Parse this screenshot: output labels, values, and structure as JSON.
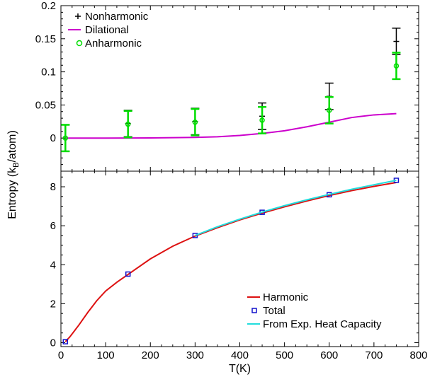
{
  "chart_data": [
    {
      "type": "scatter",
      "panel": "top",
      "ylim": [
        -0.05,
        0.2
      ],
      "xlim": [
        0,
        800
      ],
      "yticks": [
        0,
        0.05,
        0.1,
        0.15,
        0.2
      ],
      "ytick_labels": [
        "0",
        "0.05",
        "0.1",
        "0.15",
        "0.2"
      ],
      "grid": false,
      "legend_position": "top-left",
      "series": [
        {
          "name": "Nonharmonic",
          "kind": "errorbar",
          "color": "#000000",
          "x": [
            10,
            150,
            300,
            450,
            600,
            750
          ],
          "y": [
            0.0,
            0.022,
            0.025,
            0.033,
            0.063,
            0.146
          ],
          "err": [
            0.02,
            0.02,
            0.02,
            0.02,
            0.02,
            0.02
          ]
        },
        {
          "name": "Dilational",
          "kind": "line",
          "color": "#cc00cc",
          "x": [
            10,
            100,
            200,
            300,
            350,
            400,
            450,
            500,
            550,
            600,
            650,
            700,
            750
          ],
          "y": [
            0.0,
            0.0,
            0.0002,
            0.001,
            0.002,
            0.004,
            0.007,
            0.011,
            0.017,
            0.024,
            0.031,
            0.035,
            0.037
          ]
        },
        {
          "name": "Anharmonic",
          "kind": "errorbar",
          "color": "#00dd00",
          "x": [
            10,
            150,
            300,
            450,
            600,
            750
          ],
          "y": [
            0.0,
            0.021,
            0.024,
            0.027,
            0.042,
            0.109
          ],
          "err": [
            0.02,
            0.02,
            0.02,
            0.02,
            0.02,
            0.02
          ]
        }
      ]
    },
    {
      "type": "line",
      "panel": "bottom",
      "ylim": [
        -0.2,
        8.8
      ],
      "xlim": [
        0,
        800
      ],
      "xticks": [
        0,
        100,
        200,
        300,
        400,
        500,
        600,
        700,
        800
      ],
      "yticks": [
        0,
        2,
        4,
        6,
        8
      ],
      "ytick_labels": [
        "0",
        "2",
        "4",
        "6",
        "8"
      ],
      "xtick_labels": [
        "0",
        "100",
        "200",
        "300",
        "400",
        "500",
        "600",
        "700",
        "800"
      ],
      "xlabel": "T(K)",
      "grid": false,
      "legend_position": "bottom-right",
      "series": [
        {
          "name": "Harmonic",
          "kind": "line",
          "color": "#dd1111",
          "x": [
            10,
            20,
            40,
            60,
            80,
            100,
            125,
            150,
            200,
            250,
            300,
            350,
            400,
            450,
            500,
            550,
            600,
            650,
            700,
            750
          ],
          "y": [
            0.05,
            0.3,
            0.9,
            1.55,
            2.15,
            2.65,
            3.1,
            3.5,
            4.3,
            4.95,
            5.47,
            5.9,
            6.3,
            6.65,
            6.97,
            7.27,
            7.55,
            7.8,
            8.02,
            8.22
          ]
        },
        {
          "name": "Total",
          "kind": "marker",
          "color": "#1111cc",
          "x": [
            10,
            150,
            300,
            450,
            600,
            750
          ],
          "y": [
            0.05,
            3.52,
            5.5,
            6.69,
            7.59,
            8.33
          ]
        },
        {
          "name": "From Exp. Heat Capacity",
          "kind": "line",
          "color": "#22dddd",
          "x": [
            300,
            350,
            400,
            450,
            500,
            550,
            600,
            650,
            700,
            750
          ],
          "y": [
            5.5,
            5.95,
            6.34,
            6.7,
            7.03,
            7.33,
            7.61,
            7.87,
            8.1,
            8.33
          ]
        }
      ]
    }
  ],
  "ylabel_main": "Entropy (k",
  "ylabel_sub": "B",
  "ylabel_tail": "/atom)"
}
